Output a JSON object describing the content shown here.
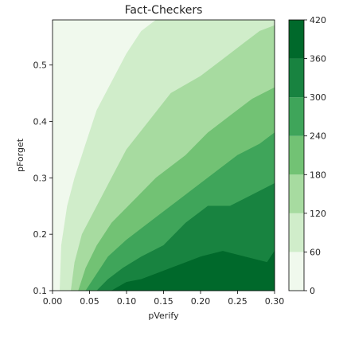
{
  "chart_data": {
    "type": "heatmap",
    "title": "Fact-Checkers",
    "xlabel": "pVerify",
    "ylabel": "pForget",
    "xlim": [
      0.0,
      0.3
    ],
    "ylim": [
      0.1,
      0.58
    ],
    "x_ticks": [
      0.0,
      0.05,
      0.1,
      0.15,
      0.2,
      0.25,
      0.3
    ],
    "x_tick_labels": [
      "0.00",
      "0.05",
      "0.10",
      "0.15",
      "0.20",
      "0.25",
      "0.30"
    ],
    "y_ticks": [
      0.1,
      0.2,
      0.3,
      0.4,
      0.5
    ],
    "y_tick_labels": [
      "0.1",
      "0.2",
      "0.3",
      "0.4",
      "0.5"
    ],
    "colorbar": {
      "levels": [
        0,
        60,
        120,
        180,
        240,
        300,
        360,
        420
      ],
      "tick_labels": [
        "0",
        "60",
        "120",
        "180",
        "240",
        "300",
        "360",
        "420"
      ],
      "colors": [
        "#f0f9ed",
        "#d0edca",
        "#a7dba0",
        "#72c274",
        "#3fa55a",
        "#188340",
        "#00692b"
      ]
    },
    "contour_boundaries": [
      {
        "level": 60,
        "points": [
          [
            0.01,
            0.1
          ],
          [
            0.012,
            0.18
          ],
          [
            0.02,
            0.25
          ],
          [
            0.03,
            0.3
          ],
          [
            0.045,
            0.36
          ],
          [
            0.06,
            0.42
          ],
          [
            0.08,
            0.47
          ],
          [
            0.1,
            0.52
          ],
          [
            0.12,
            0.56
          ],
          [
            0.14,
            0.58
          ]
        ]
      },
      {
        "level": 120,
        "points": [
          [
            0.025,
            0.1
          ],
          [
            0.03,
            0.15
          ],
          [
            0.04,
            0.2
          ],
          [
            0.06,
            0.25
          ],
          [
            0.08,
            0.3
          ],
          [
            0.1,
            0.35
          ],
          [
            0.13,
            0.4
          ],
          [
            0.16,
            0.45
          ],
          [
            0.2,
            0.48
          ],
          [
            0.23,
            0.51
          ],
          [
            0.26,
            0.54
          ],
          [
            0.28,
            0.56
          ],
          [
            0.3,
            0.57
          ]
        ]
      },
      {
        "level": 180,
        "points": [
          [
            0.035,
            0.1
          ],
          [
            0.045,
            0.14
          ],
          [
            0.06,
            0.18
          ],
          [
            0.08,
            0.22
          ],
          [
            0.11,
            0.26
          ],
          [
            0.14,
            0.3
          ],
          [
            0.18,
            0.34
          ],
          [
            0.21,
            0.38
          ],
          [
            0.24,
            0.41
          ],
          [
            0.27,
            0.44
          ],
          [
            0.3,
            0.46
          ]
        ]
      },
      {
        "level": 240,
        "points": [
          [
            0.045,
            0.1
          ],
          [
            0.06,
            0.13
          ],
          [
            0.075,
            0.16
          ],
          [
            0.1,
            0.19
          ],
          [
            0.13,
            0.22
          ],
          [
            0.16,
            0.25
          ],
          [
            0.19,
            0.28
          ],
          [
            0.22,
            0.31
          ],
          [
            0.25,
            0.34
          ],
          [
            0.28,
            0.36
          ],
          [
            0.3,
            0.38
          ]
        ]
      },
      {
        "level": 300,
        "points": [
          [
            0.06,
            0.1
          ],
          [
            0.075,
            0.12
          ],
          [
            0.095,
            0.14
          ],
          [
            0.12,
            0.16
          ],
          [
            0.15,
            0.18
          ],
          [
            0.18,
            0.22
          ],
          [
            0.21,
            0.25
          ],
          [
            0.24,
            0.25
          ],
          [
            0.27,
            0.27
          ],
          [
            0.3,
            0.29
          ]
        ]
      },
      {
        "level": 360,
        "points": [
          [
            0.08,
            0.1
          ],
          [
            0.1,
            0.115
          ],
          [
            0.12,
            0.12
          ],
          [
            0.14,
            0.13
          ],
          [
            0.16,
            0.14
          ],
          [
            0.18,
            0.15
          ],
          [
            0.2,
            0.16
          ],
          [
            0.23,
            0.17
          ],
          [
            0.26,
            0.16
          ],
          [
            0.29,
            0.15
          ],
          [
            0.3,
            0.17
          ]
        ]
      }
    ]
  }
}
